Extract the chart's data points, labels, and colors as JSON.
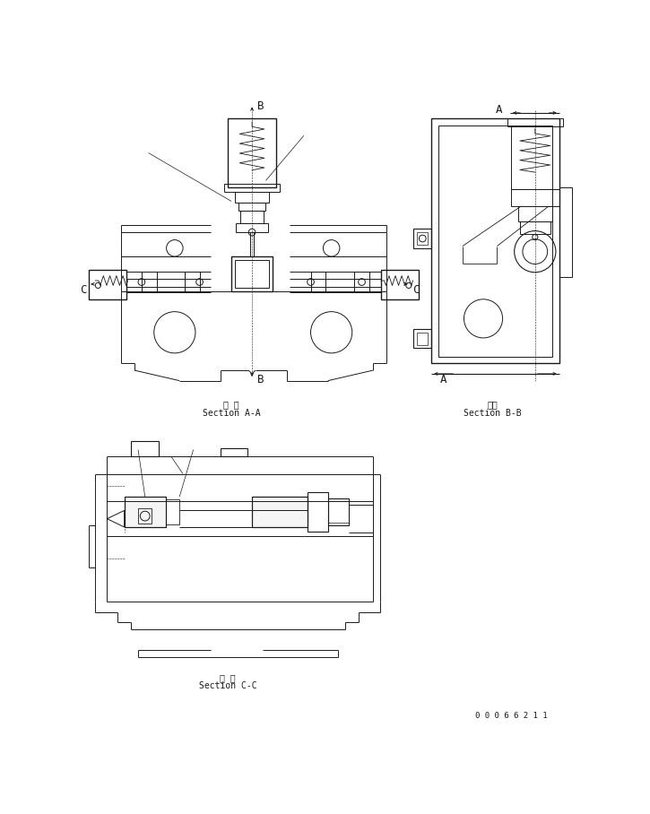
{
  "bg_color": "#ffffff",
  "lc": "#1a1a1a",
  "lw": 0.7,
  "tlw": 1.0,
  "section_aa_jp": "断 面",
  "section_aa_en": "Section A-A",
  "section_bb_jp": "断面",
  "section_bb_en": "Section B-B",
  "section_cc_jp": "断 面",
  "section_cc_en": "Section C-C",
  "doc_number": "0 0 0 6 6 2 1 1"
}
